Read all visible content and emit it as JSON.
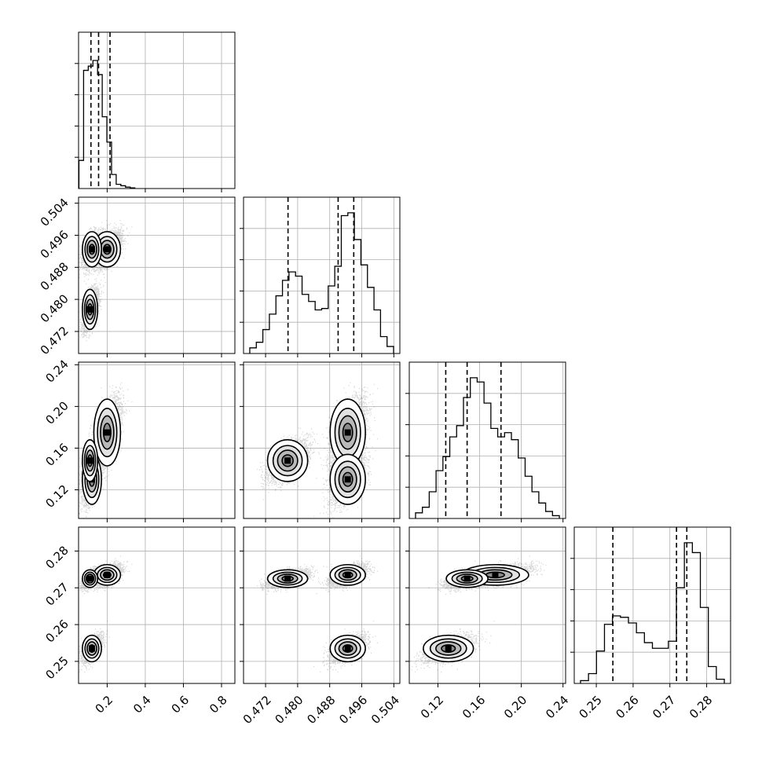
{
  "chart_data": {
    "type": "corner",
    "n_params": 4,
    "grid": true,
    "params": [
      {
        "range": [
          0.05,
          0.87
        ],
        "ticks": [
          0.2,
          0.4,
          0.6,
          0.8
        ],
        "tick_labels": [
          "0.2",
          "0.4",
          "0.6",
          "0.8"
        ],
        "quantiles": [
          0.115,
          0.155,
          0.215
        ],
        "hist": [
          0.2,
          0.84,
          0.87,
          0.91,
          0.81,
          0.51,
          0.33,
          0.1,
          0.03,
          0.02,
          0.01,
          0.005
        ]
      },
      {
        "range": [
          0.4665,
          0.5055
        ],
        "ticks": [
          0.472,
          0.48,
          0.488,
          0.496,
          0.504
        ],
        "tick_labels": [
          "0.472",
          "0.480",
          "0.488",
          "0.496",
          "0.504"
        ],
        "quantiles": [
          0.4776,
          0.4901,
          0.494
        ],
        "hist": [
          0.04,
          0.08,
          0.17,
          0.28,
          0.41,
          0.52,
          0.58,
          0.55,
          0.42,
          0.37,
          0.31,
          0.32,
          0.48,
          0.62,
          0.98,
          1.0,
          0.81,
          0.63,
          0.47,
          0.31,
          0.12,
          0.05
        ]
      },
      {
        "range": [
          0.0925,
          0.2425
        ],
        "ticks": [
          0.12,
          0.16,
          0.2,
          0.24
        ],
        "tick_labels": [
          "0.12",
          "0.16",
          "0.20",
          "0.24"
        ],
        "quantiles": [
          0.1275,
          0.148,
          0.1805
        ],
        "hist": [
          0.04,
          0.08,
          0.19,
          0.34,
          0.44,
          0.58,
          0.66,
          0.86,
          1.0,
          0.97,
          0.82,
          0.64,
          0.58,
          0.61,
          0.56,
          0.43,
          0.3,
          0.19,
          0.11,
          0.05,
          0.02
        ]
      },
      {
        "range": [
          0.244,
          0.2865
        ],
        "ticks": [
          0.25,
          0.26,
          0.27,
          0.28
        ],
        "tick_labels": [
          "0.25",
          "0.26",
          "0.27",
          "0.28"
        ],
        "quantiles": [
          0.2545,
          0.2718,
          0.2746
        ],
        "hist": [
          0.02,
          0.07,
          0.23,
          0.42,
          0.48,
          0.47,
          0.43,
          0.36,
          0.29,
          0.25,
          0.25,
          0.3,
          0.68,
          1.0,
          0.93,
          0.54,
          0.12,
          0.03
        ]
      }
    ],
    "modes": [
      {
        "values": [
          0.2,
          0.4925,
          0.175,
          0.2735
        ],
        "sd": [
          0.035,
          0.0022,
          0.016,
          0.0014
        ],
        "n": 3000
      },
      {
        "values": [
          0.12,
          0.4925,
          0.13,
          0.2535
        ],
        "sd": [
          0.025,
          0.0022,
          0.012,
          0.0018
        ],
        "n": 2200
      },
      {
        "values": [
          0.11,
          0.4775,
          0.148,
          0.2725
        ],
        "sd": [
          0.02,
          0.0025,
          0.01,
          0.0012
        ],
        "n": 2800
      }
    ]
  }
}
